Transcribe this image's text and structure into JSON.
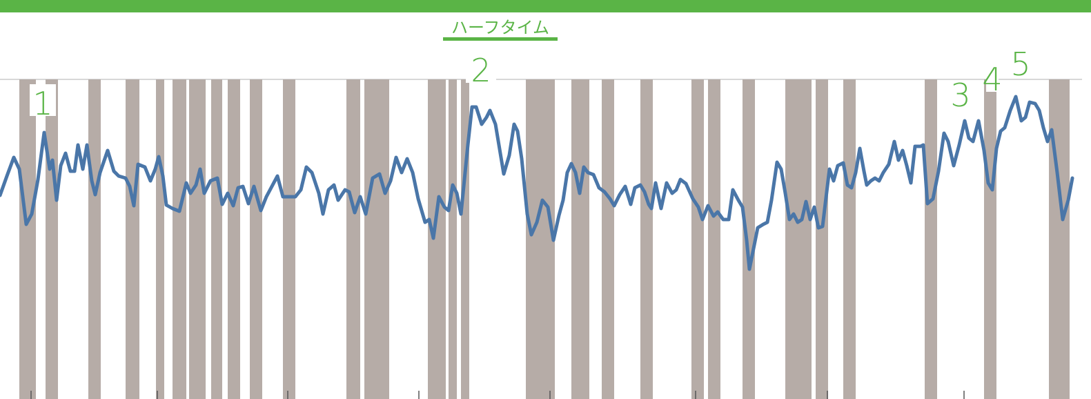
{
  "chart_data": {
    "type": "line",
    "title": "ハーフタイム",
    "x": [
      0,
      10,
      20,
      28,
      38,
      46,
      55,
      64,
      72,
      76,
      82,
      88,
      95,
      102,
      108,
      113,
      120,
      126,
      133,
      138,
      145,
      156,
      165,
      172,
      182,
      188,
      194,
      200,
      210,
      218,
      225,
      230,
      236,
      241,
      250,
      260,
      270,
      276,
      284,
      290,
      296,
      305,
      315,
      322,
      330,
      338,
      345,
      352,
      360,
      368,
      378,
      386,
      394,
      402,
      410,
      418,
      428,
      436,
      444,
      452,
      462,
      468,
      476,
      484,
      490,
      500,
      506,
      514,
      522,
      530,
      540,
      550,
      558,
      566,
      574,
      582,
      590,
      598,
      606,
      616,
      622,
      628,
      636,
      644,
      650,
      656,
      662,
      668,
      678,
      684,
      690,
      698,
      705,
      710,
      718,
      730,
      738,
      745,
      750,
      756,
      764,
      770,
      778,
      786,
      794,
      802,
      810,
      816,
      822,
      828,
      834,
      840,
      846,
      852,
      860,
      868,
      876,
      884,
      890,
      898,
      906,
      914,
      920,
      928,
      934,
      940,
      944,
      950,
      958,
      966,
      974,
      980,
      986,
      994,
      1004,
      1012,
      1018,
      1026,
      1034,
      1040,
      1048,
      1056,
      1062,
      1070,
      1076,
      1082,
      1086,
      1092,
      1098,
      1106,
      1112,
      1118,
      1126,
      1132,
      1138,
      1144,
      1150,
      1156,
      1162,
      1168,
      1174,
      1180,
      1186,
      1192,
      1198,
      1202,
      1208,
      1214,
      1222,
      1228,
      1234,
      1240,
      1246,
      1252,
      1256,
      1262,
      1268,
      1274,
      1280,
      1288,
      1296,
      1302,
      1308,
      1314,
      1320,
      1326,
      1334,
      1338,
      1344,
      1352,
      1360,
      1368,
      1374,
      1382,
      1390,
      1398,
      1404,
      1410,
      1418,
      1426,
      1432,
      1438,
      1444,
      1450,
      1456,
      1464,
      1472,
      1480,
      1486,
      1492,
      1500,
      1506,
      1512,
      1518,
      1524,
      1532,
      1540,
      1548,
      1554
    ],
    "series": [
      {
        "color": "#4a76a8",
        "values": [
          295,
          323,
          350,
          333,
          253,
          268,
          318,
          386,
          333,
          346,
          288,
          338,
          356,
          330,
          330,
          368,
          333,
          368,
          316,
          296,
          328,
          360,
          330,
          323,
          320,
          308,
          280,
          340,
          336,
          316,
          333,
          351,
          323,
          281,
          276,
          272,
          313,
          298,
          310,
          333,
          298,
          316,
          320,
          282,
          298,
          280,
          306,
          308,
          283,
          308,
          273,
          293,
          308,
          323,
          293,
          293,
          293,
          303,
          336,
          328,
          298,
          268,
          303,
          310,
          288,
          303,
          300,
          270,
          293,
          268,
          320,
          326,
          298,
          316,
          350,
          328,
          348,
          328,
          290,
          256,
          260,
          233,
          293,
          278,
          273,
          310,
          298,
          268,
          368,
          423,
          423,
          398,
          408,
          418,
          398,
          326,
          353,
          398,
          388,
          348,
          268,
          238,
          256,
          288,
          278,
          230,
          266,
          288,
          328,
          341,
          328,
          298,
          336,
          328,
          325,
          306,
          300,
          290,
          280,
          296,
          308,
          282,
          306,
          310,
          300,
          282,
          276,
          313,
          276,
          313,
          298,
          303,
          318,
          312,
          290,
          278,
          260,
          280,
          265,
          271,
          260,
          260,
          303,
          288,
          278,
          230,
          188,
          218,
          248,
          253,
          256,
          288,
          343,
          333,
          298,
          260,
          268,
          256,
          260,
          286,
          260,
          278,
          248,
          250,
          300,
          333,
          316,
          338,
          342,
          310,
          306,
          328,
          363,
          330,
          310,
          316,
          320,
          316,
          328,
          340,
          373,
          346,
          360,
          338,
          313,
          366,
          366,
          368,
          283,
          290,
          330,
          385,
          373,
          338,
          368,
          403,
          378,
          373,
          403,
          360,
          313,
          303,
          363,
          388,
          393,
          418,
          438,
          403,
          408,
          430,
          428,
          418,
          393,
          373,
          390,
          328,
          260,
          288,
          320
        ]
      }
    ],
    "bands": [
      [
        28,
        52
      ],
      [
        66,
        84
      ],
      [
        128,
        146
      ],
      [
        182,
        202
      ],
      [
        226,
        238
      ],
      [
        250,
        270
      ],
      [
        274,
        298
      ],
      [
        306,
        322
      ],
      [
        330,
        348
      ],
      [
        362,
        380
      ],
      [
        410,
        428
      ],
      [
        502,
        522
      ],
      [
        528,
        564
      ],
      [
        620,
        646
      ],
      [
        650,
        662
      ],
      [
        668,
        680
      ],
      [
        762,
        804
      ],
      [
        828,
        854
      ],
      [
        872,
        890
      ],
      [
        928,
        946
      ],
      [
        1002,
        1020
      ],
      [
        1026,
        1044
      ],
      [
        1076,
        1094
      ],
      [
        1138,
        1176
      ],
      [
        1182,
        1200
      ],
      [
        1222,
        1240
      ],
      [
        1340,
        1358
      ],
      [
        1426,
        1444
      ],
      [
        1520,
        1550
      ]
    ],
    "band_color": "#b6aca7",
    "annotations": [
      "1",
      "2",
      "3",
      "4",
      "5"
    ],
    "xlim": [
      0,
      1581
    ],
    "ylim": [
      0,
      463
    ],
    "xticks": [
      45,
      228,
      417,
      607,
      797,
      1008,
      1199,
      1397
    ]
  }
}
